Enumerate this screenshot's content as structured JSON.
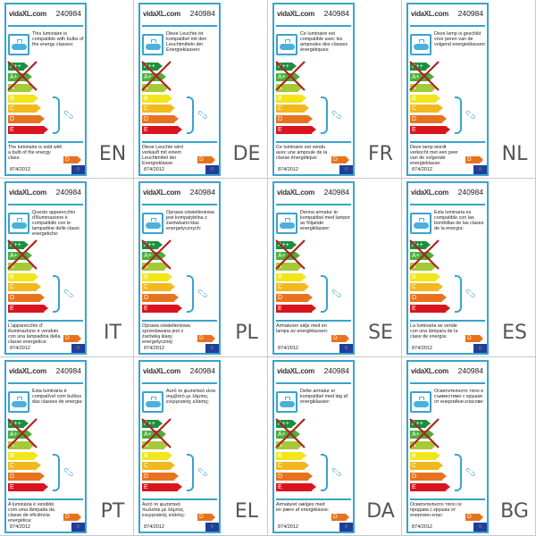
{
  "brand": "vidaXL.com",
  "product_number": "240984",
  "regulation": "874/2012",
  "energy_classes": [
    "A++",
    "A+",
    "A",
    "B",
    "C",
    "D",
    "E"
  ],
  "excluded_classes": [
    "A++",
    "A+",
    "A"
  ],
  "sold_with_class": "D",
  "colors": {
    "border": "#3aa3cc",
    "A++": "#1a8f3c",
    "A+": "#4caf3a",
    "A": "#a6c938",
    "B": "#f2e51a",
    "C": "#f3b81e",
    "D": "#e8731e",
    "E": "#d9141f",
    "cross": "#b22222"
  },
  "icons": [
    "ceiling-lamp-icon",
    "bulb-icon",
    "eu-flag-icon"
  ],
  "labels": [
    {
      "lang": "EN",
      "compatible": "This luminaire is compatible with bulbs of the energy classes:",
      "sold": "The luminaire is sold with a bulb of the energy class:"
    },
    {
      "lang": "DE",
      "compatible": "Diese Leuchte ist kompatibel mit den Leuchtmitteln der Energieklassen:",
      "sold": "Diese Leuchte wird verkauft mit einem Leuchtmittel der Energieklasse:"
    },
    {
      "lang": "FR",
      "compatible": "Ce luminaire est compatible avec les ampoules des classes énergétiques:",
      "sold": "Ce luminaire est vendu avec une ampoule de la classe énergétique:"
    },
    {
      "lang": "NL",
      "compatible": "Deze lamp is geschikt voor peren van de volgend energieklassen:",
      "sold": "Deze lamp wordt verkocht met een peer van de volgende energieklasse:"
    },
    {
      "lang": "IT",
      "compatible": "Questo apparecchio d'illuminazione è compatibile con le lampadine delle classi energetiche:",
      "sold": "L'apparecchio d' illuminazione è venduto con una lampadina della classe energetica:"
    },
    {
      "lang": "PL",
      "compatible": "Oprawa oświetleniowa jest kompatybilna z żarówkami klas energetycznych:",
      "sold": "Oprawa oświetleniowa sprzedawana jest z żarówką klasy energetycznej:"
    },
    {
      "lang": "SE",
      "compatible": "Denna armatur är kompatibel med lampor av följande energiklasser:",
      "sold": "Armaturen säljs med en lampa av energiklassen:"
    },
    {
      "lang": "ES",
      "compatible": "Esta luminaria es compatible con las bombillas de las clases de la energía:",
      "sold": "La luminaria se vende con una lámpara de la clase de energía:"
    },
    {
      "lang": "PT",
      "compatible": "Esta luminária é compatível com bulbos das classes de energia:",
      "sold": "A luminária é vendido com uma lâmpada da classe de eficiência energética:"
    },
    {
      "lang": "EL",
      "compatible": "Αυτό το φωτιστικό είναι συμβατό με λάμπες ενεργειακής κλάσης:",
      "sold": "Αυτό το φωτιστικό πωλείται με λάμπες ενεργειακής κλάσης:"
    },
    {
      "lang": "DA",
      "compatible": "Dette armatur er kompatibel med løg af energiklasser:",
      "sold": "Armaturet sælges med en pære af energiklasse:"
    },
    {
      "lang": "BG",
      "compatible": "Осветителното тяло е съвместимо с крушки от енергийни класове:",
      "sold": "Осветителното тяло се продава с крушка от енергиен клас:"
    }
  ]
}
